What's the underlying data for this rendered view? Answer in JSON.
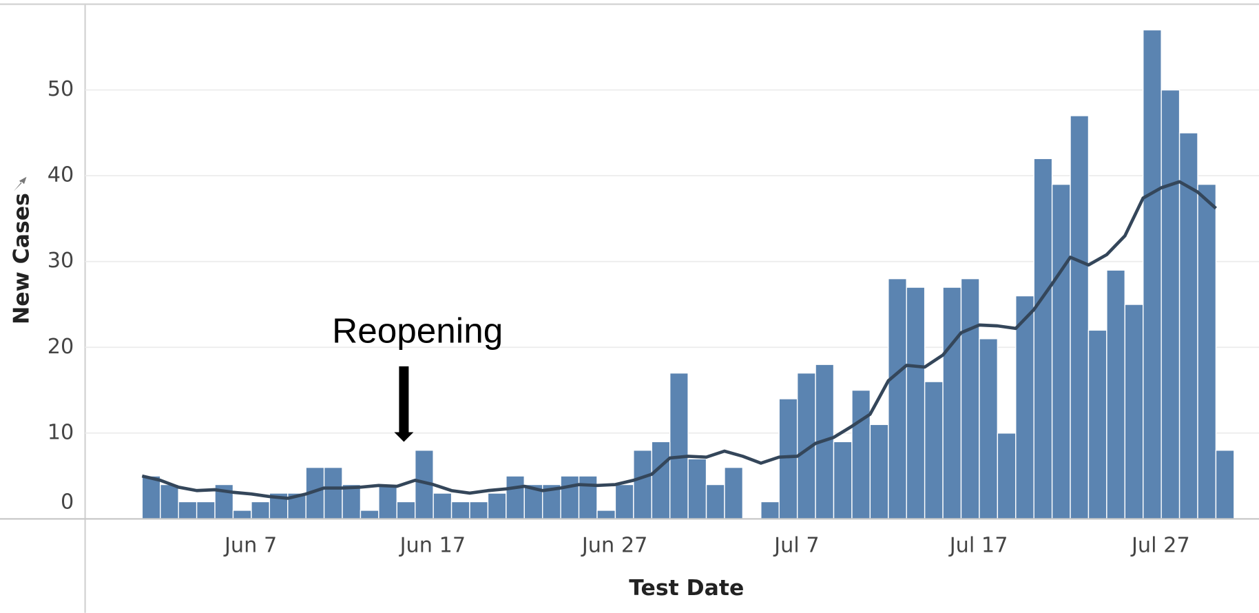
{
  "chart_data": {
    "type": "bar",
    "x_label": "Test Date",
    "y_label": "New Cases",
    "annotation": "Reopening",
    "categories": [
      null,
      null,
      null,
      null,
      null,
      null,
      "Jun 7",
      null,
      null,
      null,
      null,
      null,
      null,
      null,
      null,
      null,
      "Jun 17",
      null,
      null,
      null,
      null,
      null,
      null,
      null,
      null,
      null,
      "Jun 27",
      null,
      null,
      null,
      null,
      null,
      null,
      null,
      null,
      null,
      "Jul 7",
      null,
      null,
      null,
      null,
      null,
      null,
      null,
      null,
      null,
      "Jul 17",
      null,
      null,
      null,
      null,
      null,
      null,
      null,
      null,
      null,
      "Jul 27",
      null,
      null,
      null
    ],
    "values": [
      5,
      4,
      2,
      2,
      4,
      1,
      2,
      3,
      3,
      6,
      6,
      4,
      1,
      4,
      2,
      8,
      3,
      2,
      2,
      3,
      5,
      4,
      4,
      5,
      5,
      1,
      4,
      8,
      9,
      17,
      7,
      4,
      6,
      0,
      2,
      14,
      17,
      18,
      9,
      15,
      11,
      28,
      27,
      16,
      27,
      28,
      21,
      10,
      26,
      42,
      39,
      47,
      22,
      29,
      25,
      57,
      50,
      45,
      39,
      8
    ],
    "color": "#5b84b1",
    "line": {
      "color": "#34465a",
      "values": [
        5.0,
        4.5,
        3.7,
        3.3,
        3.4,
        3.1,
        2.9,
        2.6,
        2.4,
        2.9,
        3.6,
        3.6,
        3.7,
        3.9,
        3.8,
        4.5,
        4.0,
        3.3,
        3.0,
        3.3,
        3.5,
        3.8,
        3.3,
        3.6,
        4.0,
        3.9,
        4.0,
        4.5,
        5.2,
        7.1,
        7.3,
        7.2,
        7.9,
        7.3,
        6.5,
        7.2,
        7.3,
        8.8,
        9.5,
        10.8,
        12.2,
        16.1,
        17.9,
        17.7,
        19.1,
        21.7,
        22.6,
        22.5,
        22.2,
        24.4,
        27.4,
        30.5,
        29.6,
        30.8,
        33.0,
        37.4,
        38.6,
        39.3,
        38.1,
        36.2
      ]
    },
    "ylim": [
      0,
      60
    ],
    "yticks": [
      0,
      10,
      20,
      30,
      40,
      50
    ],
    "grid": true
  }
}
